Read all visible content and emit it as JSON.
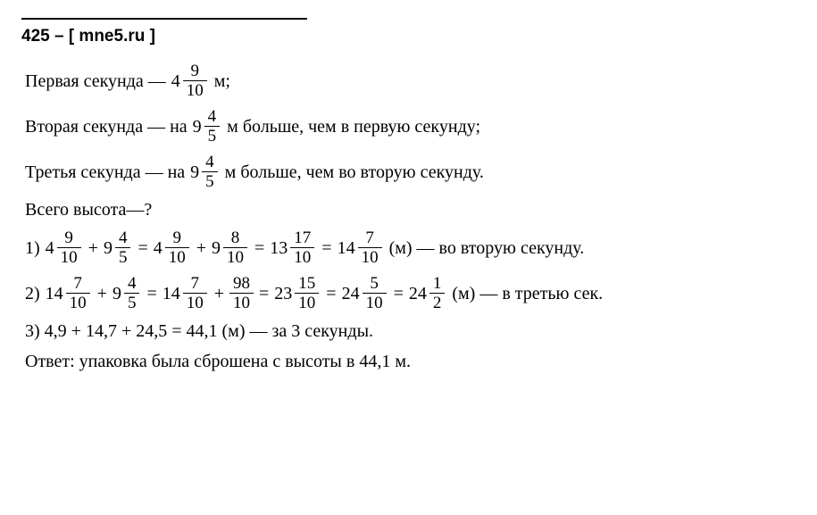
{
  "header": "425 – [ mne5.ru ]",
  "line1": {
    "prefix": "Первая секунда —",
    "whole": "4",
    "num": "9",
    "den": "10",
    "suffix": " м;"
  },
  "line2": {
    "prefix": "Вторая секунда — на",
    "whole": "9",
    "num": "4",
    "den": "5",
    "suffix": " м больше, чем в первую секунду;"
  },
  "line3": {
    "prefix": "Третья секунда — на",
    "whole": "9",
    "num": "4",
    "den": "5",
    "suffix": " м больше, чем во вторую секунду."
  },
  "line4": "Всего высота—?",
  "step1": {
    "label": "1)",
    "t1w": "4",
    "t1n": "9",
    "t1d": "10",
    "plus1": "+",
    "t2w": "9",
    "t2n": "4",
    "t2d": "5",
    "eq1": "=",
    "t3w": "4",
    "t3n": "9",
    "t3d": "10",
    "plus2": "+",
    "t4w": "9",
    "t4n": "8",
    "t4d": "10",
    "eq2": "=",
    "t5w": "13",
    "t5n": "17",
    "t5d": "10",
    "eq3": "=",
    "t6w": "14",
    "t6n": "7",
    "t6d": "10",
    "suffix": " (м) — во вторую секунду."
  },
  "step2": {
    "label": "2)",
    "t1w": "14",
    "t1n": "7",
    "t1d": "10",
    "plus1": "+",
    "t2w": "9",
    "t2n": "4",
    "t2d": "5",
    "eq1": "=",
    "t3w": "14",
    "t3n": "7",
    "t3d": "10",
    "plus2": "+",
    "t4n": "98",
    "t4d": "10",
    "eq2": "=",
    "t5w": "23",
    "t5n": "15",
    "t5d": "10",
    "eq3": "=",
    "t6w": "24",
    "t6n": "5",
    "t6d": "10",
    "eq4": "=",
    "t7w": "24",
    "t7n": "1",
    "t7d": "2",
    "suffix": " (м) — в третью сек."
  },
  "step3": "3) 4,9 + 14,7 + 24,5 = 44,1 (м) — за 3 секунды.",
  "answer": "Ответ: упаковка была сброшена с высоты в 44,1 м."
}
